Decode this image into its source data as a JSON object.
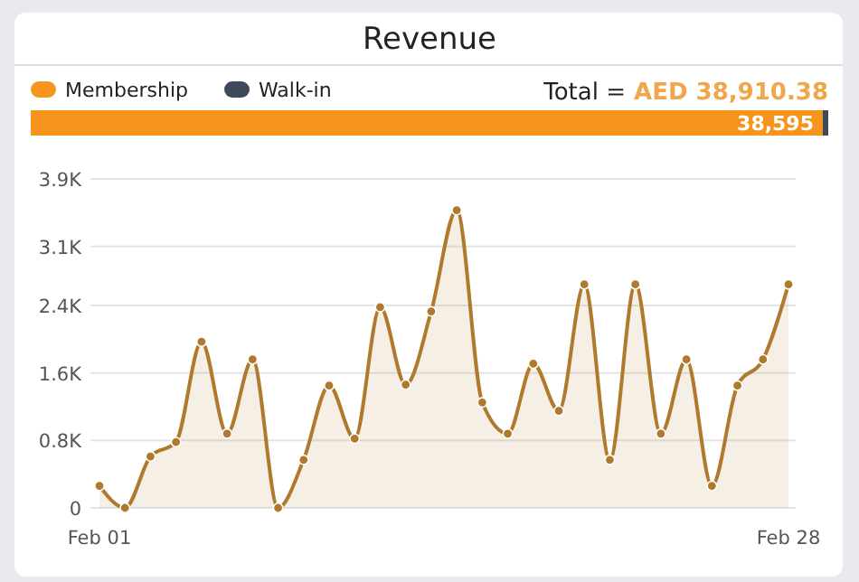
{
  "chart_data": [
    {
      "type": "other",
      "title": "Revenue",
      "legend": "top left",
      "categories": [
        null
      ],
      "series": [
        {
          "name": "Membership",
          "color": "#f7941d",
          "values": [
            null
          ]
        },
        {
          "name": "Walk-in",
          "color": "#3d4a5c",
          "values": [
            null
          ]
        }
      ],
      "annotations": [
        "38,595",
        "Total =",
        "AED 38,910.38"
      ]
    },
    {
      "type": "area",
      "categories": [
        "Feb 01",
        null,
        null,
        null,
        null,
        null,
        null,
        null,
        null,
        null,
        null,
        null,
        null,
        null,
        null,
        null,
        null,
        null,
        null,
        null,
        null,
        null,
        null,
        null,
        null,
        null,
        null,
        "Feb 28"
      ],
      "series": [
        {
          "color": "#b07a2e",
          "values": [
            260,
            0,
            610,
            780,
            1970,
            880,
            1760,
            0,
            570,
            1450,
            820,
            2380,
            1460,
            2330,
            3530,
            1250,
            880,
            1710,
            1150,
            2650,
            570,
            2650,
            880,
            1760,
            260,
            1450,
            1760,
            2650
          ]
        }
      ],
      "ylim": [
        0,
        3900
      ],
      "yticks": [
        0,
        {
          "value": 800,
          "label": "0.8K"
        },
        {
          "value": 1600,
          "label": "1.6K"
        },
        {
          "value": 2400,
          "label": "2.4K"
        },
        {
          "value": 3100,
          "label": "3.1K"
        },
        {
          "value": 3900,
          "label": "3.9K"
        }
      ],
      "grid": "y",
      "marker": "circle"
    }
  ]
}
